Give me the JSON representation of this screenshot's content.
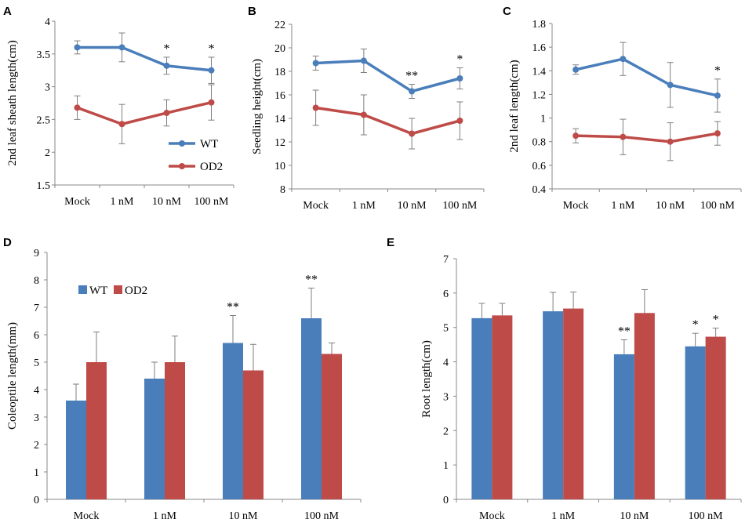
{
  "colors": {
    "wt": "#4a7ebb",
    "od2": "#be4b48",
    "axis": "#888888",
    "err": "#7f7f7f"
  },
  "chart_data": [
    {
      "id": "A",
      "panel_label": "A",
      "type": "line",
      "title": "",
      "xlabel": "",
      "ylabel": "2nd leaf sheath length(cm)",
      "categories": [
        "Mock",
        "1 nM",
        "10 nM",
        "100 nM"
      ],
      "ylim": [
        1.5,
        4
      ],
      "yticks": [
        1.5,
        2,
        2.5,
        3,
        3.5,
        4
      ],
      "series": [
        {
          "name": "WT",
          "values": [
            3.6,
            3.6,
            3.32,
            3.25
          ],
          "errors": [
            0.1,
            0.22,
            0.13,
            0.2
          ]
        },
        {
          "name": "OD2",
          "values": [
            2.68,
            2.43,
            2.6,
            2.76
          ],
          "errors": [
            0.18,
            0.3,
            0.2,
            0.27
          ]
        }
      ],
      "significance": [
        {
          "series": 0,
          "index": 2,
          "text": "*"
        },
        {
          "series": 0,
          "index": 3,
          "text": "*"
        }
      ],
      "legend": [
        "WT",
        "OD2"
      ]
    },
    {
      "id": "B",
      "panel_label": "B",
      "type": "line",
      "title": "",
      "xlabel": "",
      "ylabel": "Seedling height(cm)",
      "categories": [
        "Mock",
        "1 nM",
        "10 nM",
        "100 nM"
      ],
      "ylim": [
        8,
        22
      ],
      "yticks": [
        8,
        10,
        12,
        14,
        16,
        18,
        20,
        22
      ],
      "series": [
        {
          "name": "WT",
          "values": [
            18.7,
            18.9,
            16.3,
            17.4
          ],
          "errors": [
            0.6,
            1.0,
            0.6,
            0.9
          ]
        },
        {
          "name": "OD2",
          "values": [
            14.9,
            14.3,
            12.7,
            13.8
          ],
          "errors": [
            1.5,
            1.7,
            1.3,
            1.6
          ]
        }
      ],
      "significance": [
        {
          "series": 0,
          "index": 2,
          "text": "**"
        },
        {
          "series": 0,
          "index": 3,
          "text": "*"
        }
      ]
    },
    {
      "id": "C",
      "panel_label": "C",
      "type": "line",
      "title": "",
      "xlabel": "",
      "ylabel": "2nd leaf length(cm)",
      "categories": [
        "Mock",
        "1 nM",
        "10 nM",
        "100 nM"
      ],
      "ylim": [
        0.4,
        1.8
      ],
      "yticks": [
        0.4,
        0.6,
        0.8,
        1,
        1.2,
        1.4,
        1.6,
        1.8
      ],
      "series": [
        {
          "name": "WT",
          "values": [
            1.41,
            1.5,
            1.28,
            1.19
          ],
          "errors": [
            0.04,
            0.14,
            0.19,
            0.14
          ]
        },
        {
          "name": "OD2",
          "values": [
            0.85,
            0.84,
            0.8,
            0.87
          ],
          "errors": [
            0.06,
            0.15,
            0.16,
            0.1
          ]
        }
      ],
      "significance": [
        {
          "series": 0,
          "index": 3,
          "text": "*"
        }
      ]
    },
    {
      "id": "D",
      "panel_label": "D",
      "type": "bar",
      "title": "",
      "xlabel": "",
      "ylabel": "Coleoptile length(mm)",
      "categories": [
        "Mock",
        "1 nM",
        "10 nM",
        "100 nM"
      ],
      "ylim": [
        0,
        9
      ],
      "yticks": [
        0,
        1,
        2,
        3,
        4,
        5,
        6,
        7,
        8,
        9
      ],
      "series": [
        {
          "name": "WT",
          "values": [
            3.6,
            4.4,
            5.7,
            6.6
          ],
          "errors": [
            0.6,
            0.6,
            1.0,
            1.1
          ]
        },
        {
          "name": "OD2",
          "values": [
            5.0,
            5.0,
            4.7,
            5.3
          ],
          "errors": [
            1.1,
            0.95,
            0.95,
            0.4
          ]
        }
      ],
      "significance": [
        {
          "series": 0,
          "index": 2,
          "text": "**"
        },
        {
          "series": 0,
          "index": 3,
          "text": "**"
        }
      ],
      "legend": [
        "WT",
        "OD2"
      ]
    },
    {
      "id": "E",
      "panel_label": "E",
      "type": "bar",
      "title": "",
      "xlabel": "",
      "ylabel": "Root length(cm)",
      "categories": [
        "Mock",
        "1 nM",
        "10 nM",
        "100 nM"
      ],
      "ylim": [
        0,
        7
      ],
      "yticks": [
        0,
        1,
        2,
        3,
        4,
        5,
        6,
        7
      ],
      "series": [
        {
          "name": "WT",
          "values": [
            5.27,
            5.47,
            4.22,
            4.45
          ],
          "errors": [
            0.43,
            0.55,
            0.42,
            0.38
          ]
        },
        {
          "name": "OD2",
          "values": [
            5.35,
            5.55,
            5.42,
            4.73
          ],
          "errors": [
            0.35,
            0.48,
            0.68,
            0.25
          ]
        }
      ],
      "significance": [
        {
          "series": 0,
          "index": 2,
          "text": "**"
        },
        {
          "series": 0,
          "index": 3,
          "text": "*"
        },
        {
          "series": 1,
          "index": 3,
          "text": "*"
        }
      ]
    }
  ]
}
